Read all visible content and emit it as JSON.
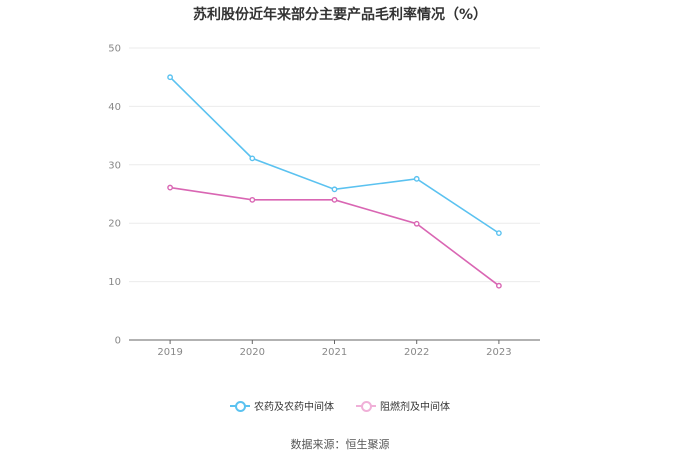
{
  "chart_data": {
    "type": "line",
    "title": "苏利股份近年来部分主要产品毛利率情况（%）",
    "categories": [
      "2019",
      "2020",
      "2021",
      "2022",
      "2023"
    ],
    "series": [
      {
        "name": "农药及农药中间体",
        "color": "#5bc2f0",
        "values": [
          45.0,
          31.1,
          25.8,
          27.6,
          18.3
        ]
      },
      {
        "name": "阻燃剂及中间体",
        "color": "#d966b3",
        "values": [
          26.1,
          24.0,
          24.0,
          19.9,
          9.3
        ]
      }
    ],
    "yticks": [
      "0",
      "10",
      "20",
      "30",
      "40",
      "50"
    ],
    "ylim": [
      0,
      50
    ],
    "grid": true,
    "legend_position": "bottom"
  },
  "source": "数据来源：恒生聚源"
}
